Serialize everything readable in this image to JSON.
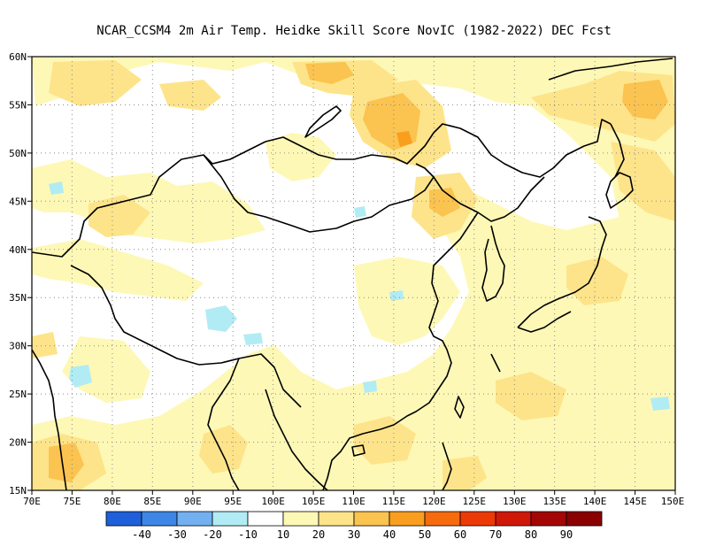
{
  "title": "NCAR_CCSM4  2m Air Temp. Heidke Skill Score NovIC (1982-2022) DEC Fcst",
  "map": {
    "lon_range": [
      70,
      150
    ],
    "lat_range": [
      15,
      60
    ],
    "lon_ticks": [
      "70E",
      "75E",
      "80E",
      "85E",
      "90E",
      "95E",
      "100E",
      "105E",
      "110E",
      "115E",
      "120E",
      "125E",
      "130E",
      "135E",
      "140E",
      "145E",
      "150E"
    ],
    "lat_ticks": [
      "15N",
      "20N",
      "25N",
      "30N",
      "35N",
      "40N",
      "45N",
      "50N",
      "55N",
      "60N"
    ],
    "grid": "dotted"
  },
  "colorbar": {
    "labels": [
      "-40",
      "-30",
      "-20",
      "-10",
      "10",
      "20",
      "30",
      "40",
      "50",
      "60",
      "70",
      "80",
      "90"
    ],
    "colors": [
      "#1f5fd9",
      "#3d86e6",
      "#73b0f0",
      "#b1ecf4",
      "#ffffff",
      "#fef8b6",
      "#fde48a",
      "#fbc34f",
      "#f99e1e",
      "#f56b0e",
      "#ec3a07",
      "#d01808",
      "#a40606"
    ]
  }
}
